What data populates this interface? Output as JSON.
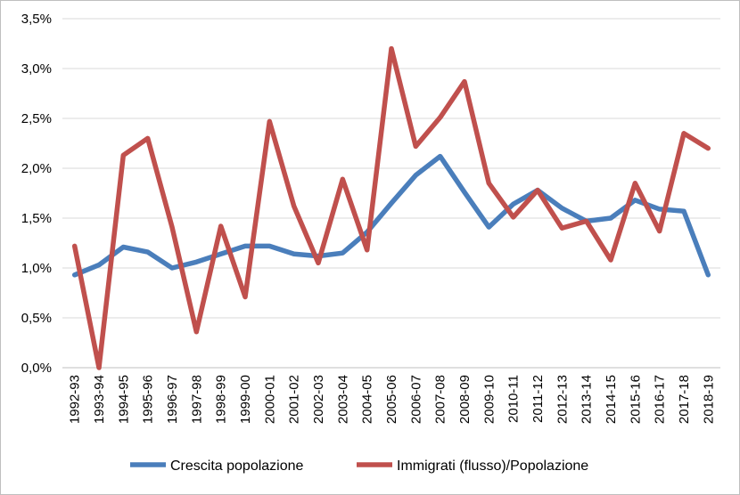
{
  "chart_data": {
    "type": "line",
    "title": "",
    "xlabel": "",
    "ylabel": "",
    "categories": [
      "1992-93",
      "1993-94",
      "1994-95",
      "1995-96",
      "1996-97",
      "1997-98",
      "1998-99",
      "1999-00",
      "2000-01",
      "2001-02",
      "2002-03",
      "2003-04",
      "2004-05",
      "2005-06",
      "2006-07",
      "2007-08",
      "2008-09",
      "2009-10",
      "2010-11",
      "2011-12",
      "2012-13",
      "2013-14",
      "2014-15",
      "2015-16",
      "2016-17",
      "2017-18",
      "2018-19"
    ],
    "ylim": [
      0,
      0.035
    ],
    "yticks": [
      0,
      0.005,
      0.01,
      0.015,
      0.02,
      0.025,
      0.03,
      0.035
    ],
    "ytick_labels": [
      "0,0%",
      "0,5%",
      "1,0%",
      "1,5%",
      "2,0%",
      "2,5%",
      "3,0%",
      "3,5%"
    ],
    "grid": "horizontal",
    "legend_position": "bottom",
    "series": [
      {
        "name": "Crescita popolazione",
        "color": "#4a7ebb",
        "values": [
          0.0093,
          0.0103,
          0.0121,
          0.0116,
          0.01,
          0.0106,
          0.0114,
          0.0122,
          0.0122,
          0.0114,
          0.0112,
          0.0115,
          0.0136,
          0.0165,
          0.0193,
          0.0212,
          0.0176,
          0.0141,
          0.0164,
          0.0178,
          0.016,
          0.0147,
          0.015,
          0.0168,
          0.0159,
          0.0157,
          0.0093
        ]
      },
      {
        "name": "Immigrati (flusso)/Popolazione",
        "color": "#c0504d",
        "values": [
          0.0122,
          0.0,
          0.0213,
          0.023,
          0.0141,
          0.0036,
          0.0142,
          0.0071,
          0.0247,
          0.0162,
          0.0105,
          0.0189,
          0.0118,
          0.032,
          0.0222,
          0.0251,
          0.0287,
          0.0185,
          0.0151,
          0.0178,
          0.014,
          0.0147,
          0.0108,
          0.0185,
          0.0137,
          0.0235,
          0.022
        ]
      }
    ]
  }
}
